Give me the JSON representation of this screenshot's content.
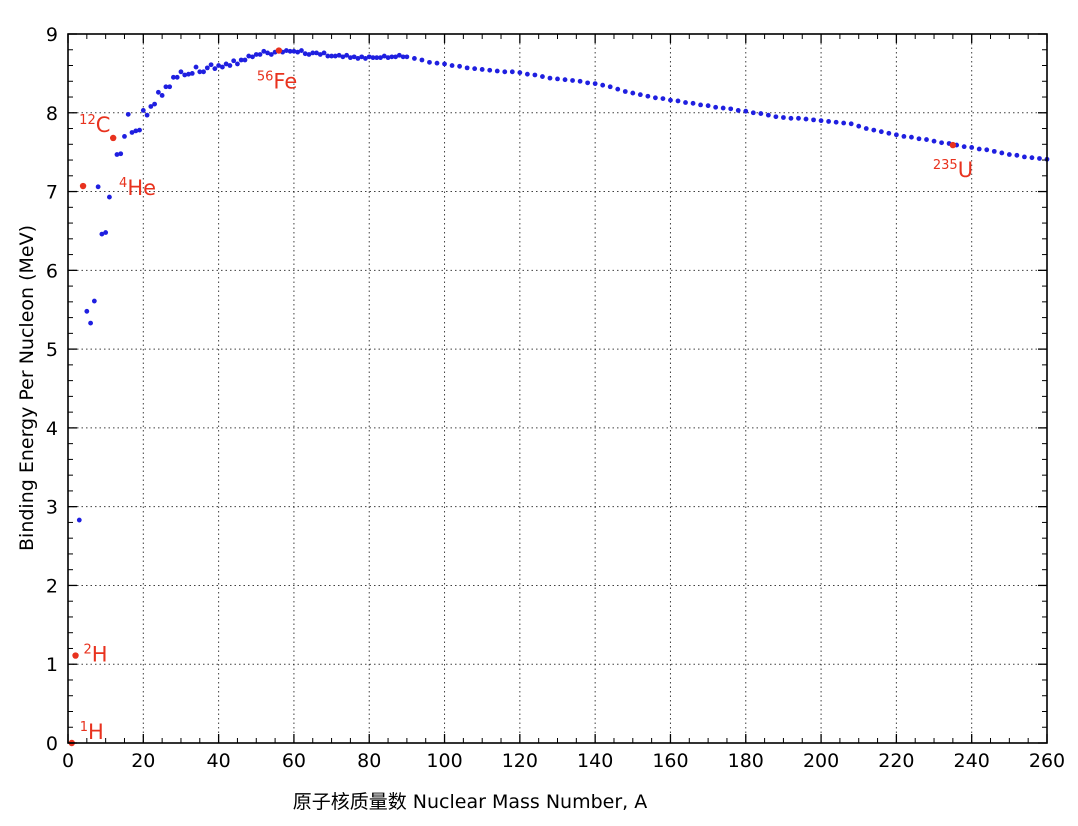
{
  "chart_data": {
    "type": "scatter",
    "title": "",
    "xlabel": "原子核质量数  Nuclear Mass Number, A",
    "ylabel": "Binding Energy Per Nucleon (MeV)",
    "xlim": [
      0,
      260
    ],
    "ylim": [
      0,
      9
    ],
    "x_ticks": [
      "0",
      "20",
      "40",
      "60",
      "80",
      "100",
      "120",
      "140",
      "160",
      "180",
      "200",
      "220",
      "240",
      "260"
    ],
    "y_ticks": [
      "0",
      "1",
      "2",
      "3",
      "4",
      "5",
      "6",
      "7",
      "8",
      "9"
    ],
    "grid": true,
    "series": [
      {
        "color": "#1f1fe0",
        "points": [
          [
            3,
            2.83
          ],
          [
            5,
            5.48
          ],
          [
            6,
            5.33
          ],
          [
            7,
            5.61
          ],
          [
            8,
            7.06
          ],
          [
            9,
            6.46
          ],
          [
            10,
            6.48
          ],
          [
            11,
            6.93
          ],
          [
            13,
            7.47
          ],
          [
            14,
            7.48
          ],
          [
            15,
            7.7
          ],
          [
            16,
            7.98
          ],
          [
            17,
            7.75
          ],
          [
            18,
            7.77
          ],
          [
            19,
            7.78
          ],
          [
            20,
            8.03
          ],
          [
            21,
            7.97
          ],
          [
            22,
            8.08
          ],
          [
            23,
            8.11
          ],
          [
            24,
            8.26
          ],
          [
            25,
            8.22
          ],
          [
            26,
            8.33
          ],
          [
            27,
            8.33
          ],
          [
            28,
            8.45
          ],
          [
            29,
            8.45
          ],
          [
            30,
            8.52
          ],
          [
            31,
            8.48
          ],
          [
            32,
            8.49
          ],
          [
            33,
            8.5
          ],
          [
            34,
            8.58
          ],
          [
            35,
            8.52
          ],
          [
            36,
            8.52
          ],
          [
            37,
            8.57
          ],
          [
            38,
            8.61
          ],
          [
            39,
            8.56
          ],
          [
            40,
            8.6
          ],
          [
            41,
            8.58
          ],
          [
            42,
            8.62
          ],
          [
            43,
            8.6
          ],
          [
            44,
            8.66
          ],
          [
            45,
            8.62
          ],
          [
            46,
            8.67
          ],
          [
            47,
            8.67
          ],
          [
            48,
            8.72
          ],
          [
            49,
            8.71
          ],
          [
            50,
            8.74
          ],
          [
            51,
            8.74
          ],
          [
            52,
            8.78
          ],
          [
            53,
            8.76
          ],
          [
            54,
            8.74
          ],
          [
            55,
            8.77
          ],
          [
            57,
            8.77
          ],
          [
            58,
            8.79
          ],
          [
            59,
            8.78
          ],
          [
            60,
            8.78
          ],
          [
            61,
            8.77
          ],
          [
            62,
            8.79
          ],
          [
            63,
            8.75
          ],
          [
            64,
            8.74
          ],
          [
            65,
            8.76
          ],
          [
            66,
            8.76
          ],
          [
            67,
            8.74
          ],
          [
            68,
            8.76
          ],
          [
            69,
            8.72
          ],
          [
            70,
            8.72
          ],
          [
            71,
            8.72
          ],
          [
            72,
            8.73
          ],
          [
            73,
            8.71
          ],
          [
            74,
            8.73
          ],
          [
            75,
            8.7
          ],
          [
            76,
            8.71
          ],
          [
            77,
            8.69
          ],
          [
            78,
            8.71
          ],
          [
            79,
            8.69
          ],
          [
            80,
            8.71
          ],
          [
            81,
            8.7
          ],
          [
            82,
            8.7
          ],
          [
            83,
            8.7
          ],
          [
            84,
            8.72
          ],
          [
            85,
            8.7
          ],
          [
            86,
            8.71
          ],
          [
            87,
            8.71
          ],
          [
            88,
            8.73
          ],
          [
            89,
            8.71
          ],
          [
            90,
            8.71
          ],
          [
            92,
            8.69
          ],
          [
            94,
            8.67
          ],
          [
            96,
            8.64
          ],
          [
            98,
            8.63
          ],
          [
            100,
            8.62
          ],
          [
            102,
            8.6
          ],
          [
            104,
            8.59
          ],
          [
            106,
            8.57
          ],
          [
            108,
            8.56
          ],
          [
            110,
            8.55
          ],
          [
            112,
            8.54
          ],
          [
            114,
            8.53
          ],
          [
            116,
            8.52
          ],
          [
            118,
            8.52
          ],
          [
            120,
            8.51
          ],
          [
            122,
            8.49
          ],
          [
            124,
            8.48
          ],
          [
            126,
            8.46
          ],
          [
            128,
            8.44
          ],
          [
            130,
            8.43
          ],
          [
            132,
            8.42
          ],
          [
            134,
            8.41
          ],
          [
            136,
            8.4
          ],
          [
            138,
            8.38
          ],
          [
            140,
            8.37
          ],
          [
            142,
            8.35
          ],
          [
            144,
            8.33
          ],
          [
            146,
            8.3
          ],
          [
            148,
            8.27
          ],
          [
            150,
            8.25
          ],
          [
            152,
            8.23
          ],
          [
            154,
            8.21
          ],
          [
            156,
            8.19
          ],
          [
            158,
            8.18
          ],
          [
            160,
            8.16
          ],
          [
            162,
            8.15
          ],
          [
            164,
            8.13
          ],
          [
            166,
            8.12
          ],
          [
            168,
            8.1
          ],
          [
            170,
            8.09
          ],
          [
            172,
            8.07
          ],
          [
            174,
            8.06
          ],
          [
            176,
            8.05
          ],
          [
            178,
            8.03
          ],
          [
            180,
            8.02
          ],
          [
            182,
            8.0
          ],
          [
            184,
            7.99
          ],
          [
            186,
            7.97
          ],
          [
            188,
            7.95
          ],
          [
            190,
            7.94
          ],
          [
            192,
            7.93
          ],
          [
            194,
            7.93
          ],
          [
            196,
            7.92
          ],
          [
            198,
            7.91
          ],
          [
            200,
            7.9
          ],
          [
            202,
            7.89
          ],
          [
            204,
            7.88
          ],
          [
            206,
            7.87
          ],
          [
            208,
            7.86
          ],
          [
            210,
            7.83
          ],
          [
            212,
            7.8
          ],
          [
            214,
            7.78
          ],
          [
            216,
            7.76
          ],
          [
            218,
            7.74
          ],
          [
            220,
            7.72
          ],
          [
            222,
            7.7
          ],
          [
            224,
            7.69
          ],
          [
            226,
            7.67
          ],
          [
            228,
            7.66
          ],
          [
            230,
            7.64
          ],
          [
            232,
            7.62
          ],
          [
            234,
            7.61
          ],
          [
            236,
            7.59
          ],
          [
            238,
            7.57
          ],
          [
            240,
            7.56
          ],
          [
            242,
            7.54
          ],
          [
            244,
            7.53
          ],
          [
            246,
            7.51
          ],
          [
            248,
            7.49
          ],
          [
            250,
            7.47
          ],
          [
            252,
            7.46
          ],
          [
            254,
            7.44
          ],
          [
            256,
            7.43
          ],
          [
            258,
            7.42
          ],
          [
            260,
            7.41
          ]
        ]
      },
      {
        "color": "#e8321e",
        "points": [
          [
            1,
            0.0
          ],
          [
            2,
            1.11
          ],
          [
            4,
            7.07
          ],
          [
            12,
            7.68
          ],
          [
            56,
            8.79
          ],
          [
            235,
            7.59
          ]
        ]
      }
    ],
    "annotations": [
      {
        "mass": "1",
        "symbol": "H",
        "x": 1,
        "y": 0.0
      },
      {
        "mass": "2",
        "symbol": "H",
        "x": 2,
        "y": 1.11
      },
      {
        "mass": "4",
        "symbol": "He",
        "x": 4,
        "y": 7.07
      },
      {
        "mass": "12",
        "symbol": "C",
        "x": 12,
        "y": 7.68
      },
      {
        "mass": "56",
        "symbol": "Fe",
        "x": 56,
        "y": 8.79
      },
      {
        "mass": "235",
        "symbol": "U",
        "x": 235,
        "y": 7.59
      }
    ]
  }
}
